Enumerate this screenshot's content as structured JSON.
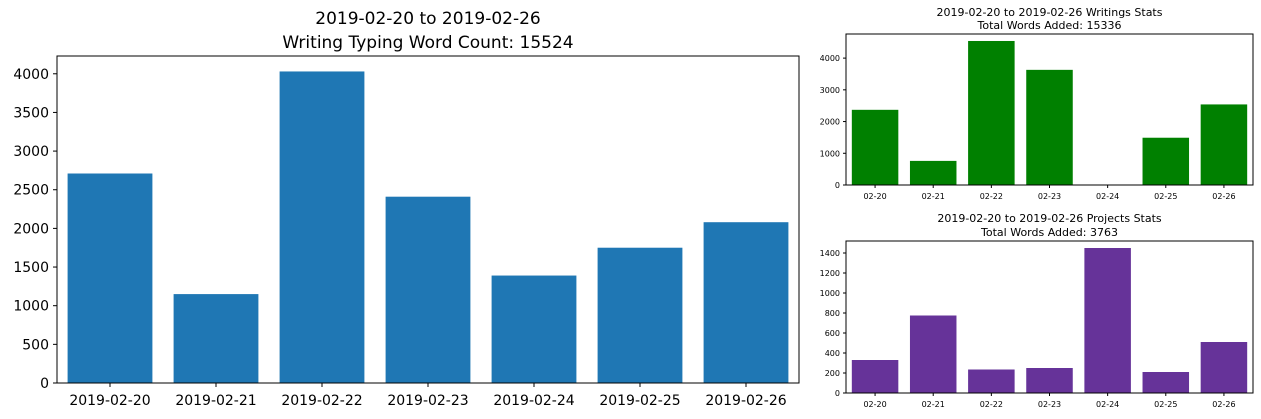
{
  "chart_data": [
    {
      "type": "bar",
      "title": "2019-02-20 to 2019-02-26",
      "subtitle": "Writing Typing Word Count: 15524",
      "categories": [
        "2019-02-20",
        "2019-02-21",
        "2019-02-22",
        "2019-02-23",
        "2019-02-24",
        "2019-02-25",
        "2019-02-26"
      ],
      "values": [
        2710,
        1150,
        4030,
        2410,
        1390,
        1750,
        2080
      ],
      "yticks": [
        0,
        500,
        1000,
        1500,
        2000,
        2500,
        3000,
        3500,
        4000
      ],
      "ylim": [
        0,
        4230
      ],
      "color": "#1f77b4",
      "grid": false
    },
    {
      "type": "bar",
      "title": "2019-02-20 to 2019-02-26 Writings Stats",
      "subtitle": "Total Words Added: 15336",
      "categories": [
        "02-20",
        "02-21",
        "02-22",
        "02-23",
        "02-24",
        "02-25",
        "02-26"
      ],
      "values": [
        2370,
        760,
        4540,
        3630,
        0,
        1490,
        2540
      ],
      "yticks": [
        0,
        1000,
        2000,
        3000,
        4000
      ],
      "ylim": [
        0,
        4760
      ],
      "color": "#008000",
      "grid": false
    },
    {
      "type": "bar",
      "title": "2019-02-20 to 2019-02-26 Projects Stats",
      "subtitle": "Total Words Added: 3763",
      "categories": [
        "02-20",
        "02-21",
        "02-22",
        "02-23",
        "02-24",
        "02-25",
        "02-26"
      ],
      "values": [
        330,
        775,
        235,
        250,
        1450,
        210,
        510
      ],
      "yticks": [
        0,
        200,
        400,
        600,
        800,
        1000,
        1200,
        1400
      ],
      "ylim": [
        0,
        1520
      ],
      "color": "#663399",
      "grid": false
    }
  ]
}
